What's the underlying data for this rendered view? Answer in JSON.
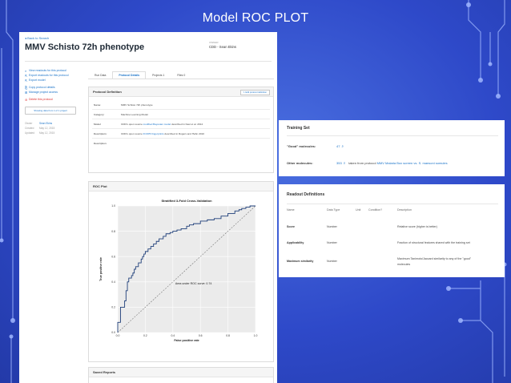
{
  "slide": {
    "title": "Model ROC PLOT"
  },
  "app": {
    "back_link": "◂ Back to Search",
    "title": "MMV Schisto 72h phenotype",
    "owner_label": "OWNER",
    "owner": "CDD - Sean Ekins",
    "sidebar": {
      "items": [
        {
          "icon": "search-icon",
          "glyph": "⌕",
          "label": "View readouts for this protocol"
        },
        {
          "icon": "export-icon",
          "glyph": "⇱",
          "label": "Export readouts for this protocol"
        },
        {
          "icon": "export-icon",
          "glyph": "⇱",
          "label": "Export model"
        },
        {
          "icon": "copy-icon",
          "glyph": "⎘",
          "label": "Copy protocol details"
        },
        {
          "icon": "manage-icon",
          "glyph": "⊞",
          "label": "Manage project access"
        },
        {
          "icon": "delete-icon",
          "glyph": "⊘",
          "label": "Delete this protocol"
        }
      ],
      "share_label": "Showing data from 1 of 1 project",
      "meta": [
        {
          "key": "Owner",
          "value": "Sean Ekins"
        },
        {
          "key": "Created",
          "value": "May 12, 2015"
        },
        {
          "key": "Updated",
          "value": "May 12, 2015"
        }
      ]
    },
    "tabs": [
      {
        "label": "Run Data",
        "active": false
      },
      {
        "label": "Protocol Details",
        "active": true
      },
      {
        "label": "Projects 1",
        "active": false
      },
      {
        "label": "Files 0",
        "active": false
      }
    ],
    "definition": {
      "title": "Protocol Definition",
      "edit_label": "✎ Edit protocol definition",
      "rows": [
        {
          "key": "Name:",
          "value": "MMV Schisto 72h phenotype",
          "link": "",
          "suffix": ""
        },
        {
          "key": "Category:",
          "value": "Machine Learning Model",
          "link": "",
          "suffix": ""
        },
        {
          "key": "Model:",
          "value": "CDD's open source ",
          "link": "modified Bayesian model",
          "suffix": " described in Kaul et al. 2014"
        },
        {
          "key": "Descriptors:",
          "value": "CDD's open source ",
          "link": "FCFP6 fingerprints",
          "suffix": " described in Rogers and Hahn 2010"
        },
        {
          "key": "Description:",
          "value": "",
          "link": "",
          "suffix": ""
        }
      ]
    },
    "roc": {
      "panel_title": "ROC Plot",
      "next_panel_title": "Saved Reports"
    }
  },
  "chart_data": {
    "type": "line",
    "title": "Stratified 3-Fold Cross-Validation",
    "xlabel": "False positive rate",
    "ylabel": "True positive rate",
    "xlim": [
      0,
      1
    ],
    "ylim": [
      0,
      1
    ],
    "xticks": [
      "0.0",
      "0.2",
      "0.4",
      "0.6",
      "0.8",
      "1.0"
    ],
    "yticks": [
      "0.0",
      "0.2",
      "0.4",
      "0.6",
      "0.8",
      "1.0"
    ],
    "annotation": "Area under ROC curve: 0.74",
    "grid": true,
    "series": [
      {
        "x": [
          0,
          0.02,
          0.05,
          0.06,
          0.07,
          0.08,
          0.1,
          0.11,
          0.12,
          0.13,
          0.15,
          0.17,
          0.18,
          0.19,
          0.2,
          0.22,
          0.24,
          0.26,
          0.28,
          0.3,
          0.33,
          0.35,
          0.38,
          0.4,
          0.43,
          0.46,
          0.5,
          0.52,
          0.55,
          0.6,
          0.65,
          0.7,
          0.75,
          0.8,
          0.85,
          0.88,
          0.9,
          0.93,
          0.96,
          1.0
        ],
        "y": [
          0,
          0.08,
          0.2,
          0.25,
          0.33,
          0.4,
          0.43,
          0.45,
          0.47,
          0.5,
          0.52,
          0.55,
          0.58,
          0.6,
          0.62,
          0.64,
          0.66,
          0.68,
          0.7,
          0.72,
          0.74,
          0.76,
          0.78,
          0.79,
          0.8,
          0.81,
          0.82,
          0.84,
          0.85,
          0.86,
          0.88,
          0.89,
          0.9,
          0.92,
          0.94,
          0.96,
          0.97,
          0.98,
          0.99,
          1.0
        ]
      },
      {
        "style": "dashed-diagonal",
        "x": [
          0,
          1
        ],
        "y": [
          0,
          1
        ]
      }
    ]
  },
  "training_set": {
    "title": "Training Set",
    "rows": [
      {
        "key": "\"Good\" molecules:",
        "count": "47",
        "desc_pre": "",
        "desc_link": "",
        "desc_mid": "",
        "desc_link2": "",
        "desc_post": ""
      },
      {
        "key": "Other molecules:",
        "count": "353",
        "desc_pre": "taken from protocol ",
        "desc_link": "MMV Malaria Box screen vs. S. mansoni somules",
        "desc_mid": "",
        "desc_link2": "",
        "desc_post": ""
      }
    ]
  },
  "readout_definitions": {
    "title": "Readout Definitions",
    "headers": [
      "Name",
      "Data Type",
      "Unit",
      "Condition?",
      "Description"
    ],
    "rows": [
      {
        "name": "Score",
        "type": "Number",
        "desc1": "Relative score (higher is better)",
        "desc2": ""
      },
      {
        "name": "Applicability",
        "type": "Number",
        "desc1": "Fraction of structural features shared with the training set",
        "desc2": ""
      },
      {
        "name": "Maximum similarity",
        "type": "Number",
        "desc1": "Maximum Tanimoto/Jaccard similarity to any of the \"good\"",
        "desc2": "molecules"
      }
    ]
  },
  "colors": {
    "background": "#2e49c9",
    "link": "#1a73c8",
    "curve": "#1f3f7a",
    "decoration": "#a9c0ff"
  }
}
